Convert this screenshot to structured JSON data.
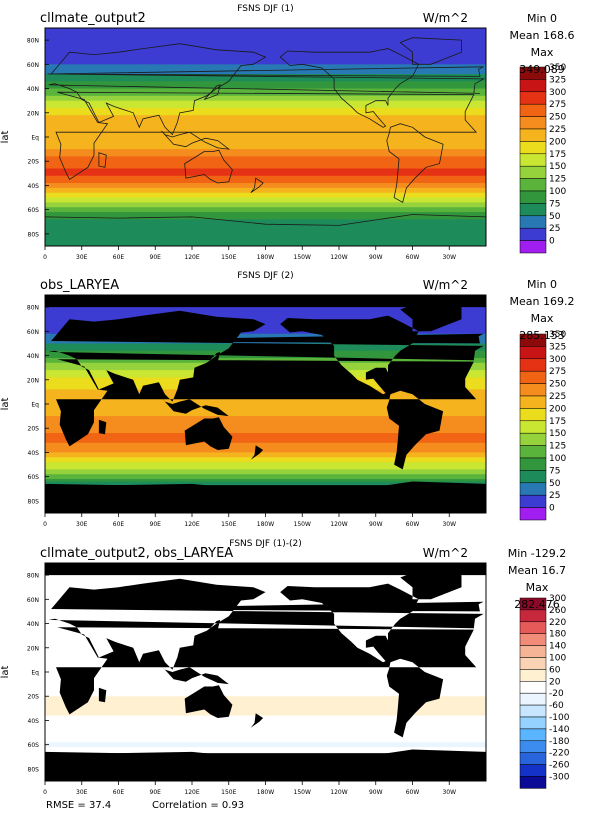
{
  "chart_data": [
    {
      "type": "heatmap",
      "title": "FSNS DJF (1)",
      "subtitle": "cllmate_output2",
      "units": "W/m^2",
      "ylabel": "lat",
      "x_ticks": [
        "0",
        "30E",
        "60E",
        "90E",
        "120E",
        "150E",
        "180W",
        "150W",
        "120W",
        "90W",
        "60W",
        "30W"
      ],
      "y_ticks": [
        "80N",
        "60N",
        "40N",
        "20N",
        "Eq",
        "20S",
        "40S",
        "60S",
        "80S"
      ],
      "stats": {
        "min": "Min 0",
        "mean": "Mean 168.6",
        "max": "Max 349.089"
      },
      "colorbar": {
        "levels": [
          "350",
          "325",
          "300",
          "275",
          "250",
          "225",
          "200",
          "175",
          "150",
          "125",
          "100",
          "75",
          "50",
          "25",
          "0"
        ],
        "colors": [
          "#8c0a0a",
          "#c81414",
          "#e63214",
          "#f06414",
          "#f58c1e",
          "#f5b41e",
          "#ebdc1e",
          "#c8e632",
          "#96d23c",
          "#5ab43c",
          "#32963c",
          "#1e8c5a",
          "#2878b4",
          "#3c3cd2",
          "#a01ef0"
        ]
      },
      "zonal_profile": [
        {
          "lat": 90,
          "value": 0
        },
        {
          "lat": 80,
          "value": 2
        },
        {
          "lat": 70,
          "value": 6
        },
        {
          "lat": 60,
          "value": 22
        },
        {
          "lat": 50,
          "value": 55
        },
        {
          "lat": 40,
          "value": 95
        },
        {
          "lat": 30,
          "value": 150
        },
        {
          "lat": 20,
          "value": 195
        },
        {
          "lat": 10,
          "value": 215
        },
        {
          "lat": 0,
          "value": 210
        },
        {
          "lat": -10,
          "value": 225
        },
        {
          "lat": -20,
          "value": 265
        },
        {
          "lat": -30,
          "value": 280
        },
        {
          "lat": -40,
          "value": 245
        },
        {
          "lat": -50,
          "value": 175
        },
        {
          "lat": -60,
          "value": 110
        },
        {
          "lat": -70,
          "value": 70
        },
        {
          "lat": -80,
          "value": 60
        },
        {
          "lat": -90,
          "value": 55
        }
      ],
      "ocean_only": false
    },
    {
      "type": "heatmap",
      "title": "FSNS DJF (2)",
      "subtitle": "obs_LARYEA",
      "units": "W/m^2",
      "ylabel": "lat",
      "x_ticks": [
        "0",
        "30E",
        "60E",
        "90E",
        "120E",
        "150E",
        "180W",
        "150W",
        "120W",
        "90W",
        "60W",
        "30W"
      ],
      "y_ticks": [
        "80N",
        "60N",
        "40N",
        "20N",
        "Eq",
        "20S",
        "40S",
        "60S",
        "80S"
      ],
      "stats": {
        "min": "Min 0",
        "mean": "Mean 169.2",
        "max": "Max 285.153"
      },
      "colorbar": {
        "levels": [
          "350",
          "325",
          "300",
          "275",
          "250",
          "225",
          "200",
          "175",
          "150",
          "125",
          "100",
          "75",
          "50",
          "25",
          "0"
        ],
        "colors": [
          "#8c0a0a",
          "#c81414",
          "#e63214",
          "#f06414",
          "#f58c1e",
          "#f5b41e",
          "#ebdc1e",
          "#c8e632",
          "#96d23c",
          "#5ab43c",
          "#32963c",
          "#1e8c5a",
          "#2878b4",
          "#3c3cd2",
          "#a01ef0"
        ]
      },
      "zonal_profile": [
        {
          "lat": 80,
          "value": 2
        },
        {
          "lat": 70,
          "value": 8
        },
        {
          "lat": 60,
          "value": 20
        },
        {
          "lat": 50,
          "value": 50
        },
        {
          "lat": 40,
          "value": 90
        },
        {
          "lat": 30,
          "value": 140
        },
        {
          "lat": 20,
          "value": 185
        },
        {
          "lat": 10,
          "value": 205
        },
        {
          "lat": 0,
          "value": 210
        },
        {
          "lat": -10,
          "value": 225
        },
        {
          "lat": -20,
          "value": 245
        },
        {
          "lat": -30,
          "value": 255
        },
        {
          "lat": -40,
          "value": 225
        },
        {
          "lat": -50,
          "value": 165
        },
        {
          "lat": -60,
          "value": 115
        },
        {
          "lat": -66,
          "value": 60
        }
      ],
      "ocean_only": true
    },
    {
      "type": "heatmap",
      "title": "FSNS DJF (1)-(2)",
      "subtitle": "cllmate_output2, obs_LARYEA",
      "units": "W/m^2",
      "ylabel": "lat",
      "x_ticks": [
        "0",
        "30E",
        "60E",
        "90E",
        "120E",
        "150E",
        "180W",
        "150W",
        "120W",
        "90W",
        "60W",
        "30W"
      ],
      "y_ticks": [
        "80N",
        "60N",
        "40N",
        "20N",
        "Eq",
        "20S",
        "40S",
        "60S",
        "80S"
      ],
      "stats": {
        "min": "Min -129.2",
        "mean": "Mean 16.7",
        "max": "Max 282.476"
      },
      "colorbar": {
        "levels": [
          "300",
          "260",
          "220",
          "180",
          "140",
          "100",
          "60",
          "20",
          "-20",
          "-60",
          "-100",
          "-140",
          "-180",
          "-220",
          "-260",
          "-300"
        ],
        "colors": [
          "#8c0a28",
          "#c8283c",
          "#e65a5a",
          "#f08c78",
          "#f5b496",
          "#fad2b4",
          "#fff0d2",
          "#ffffff",
          "#ebf5ff",
          "#c8e6ff",
          "#96d2ff",
          "#5ab4ff",
          "#3c8cf0",
          "#2864dc",
          "#1432c8",
          "#0a0a96"
        ]
      },
      "zonal_profile": [
        {
          "lat": 80,
          "value": 0
        },
        {
          "lat": 60,
          "value": 5
        },
        {
          "lat": 40,
          "value": 10
        },
        {
          "lat": 20,
          "value": 15
        },
        {
          "lat": 0,
          "value": 5
        },
        {
          "lat": -20,
          "value": 20
        },
        {
          "lat": -30,
          "value": 25
        },
        {
          "lat": -50,
          "value": 10
        },
        {
          "lat": -60,
          "value": -25
        },
        {
          "lat": -66,
          "value": -5
        }
      ],
      "ocean_only": true
    }
  ],
  "footer": {
    "rmse": "RMSE = 37.4",
    "correlation": "Correlation = 0.93"
  }
}
